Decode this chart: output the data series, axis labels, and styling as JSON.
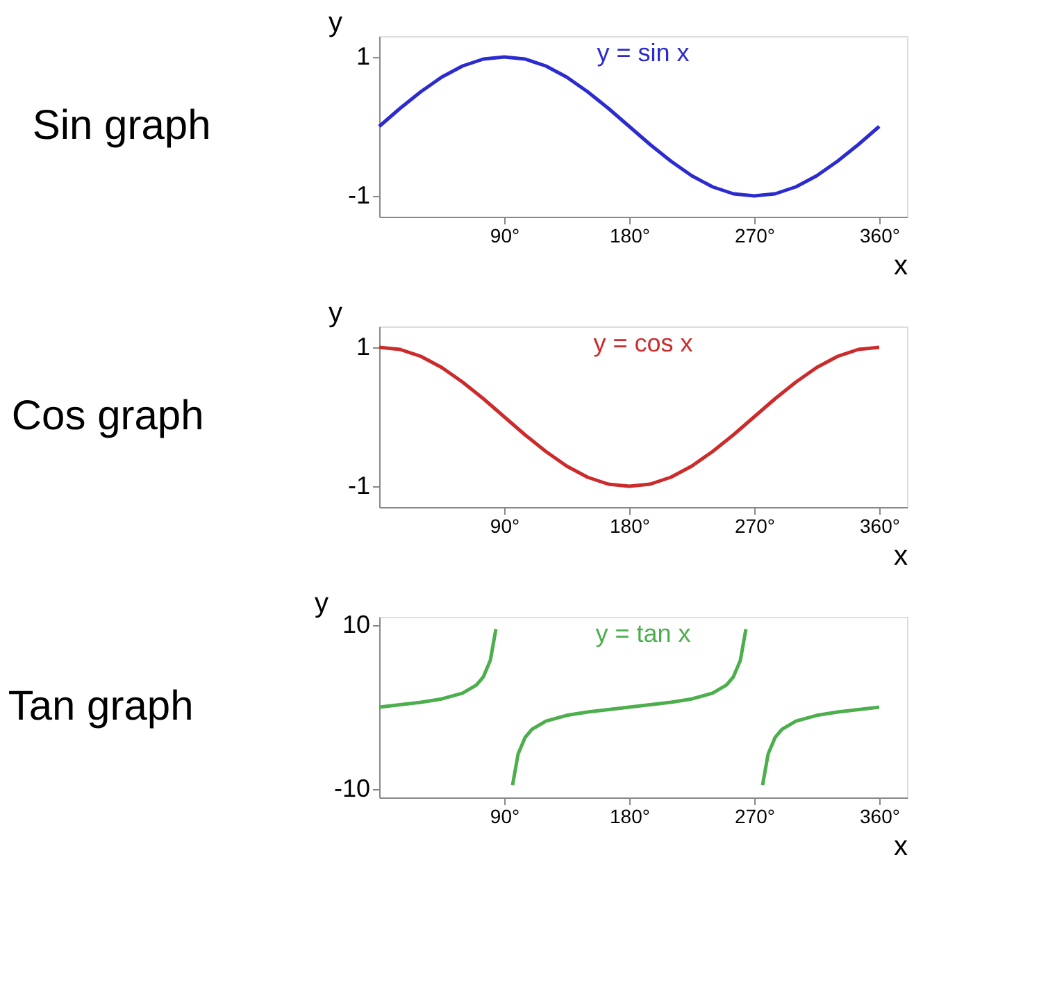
{
  "chart_data": [
    {
      "type": "line",
      "title": "Sin graph",
      "xlabel": "x",
      "ylabel": "y",
      "x": [
        0,
        15,
        30,
        45,
        60,
        75,
        90,
        105,
        120,
        135,
        150,
        165,
        180,
        195,
        210,
        225,
        240,
        255,
        270,
        285,
        300,
        315,
        330,
        345,
        360
      ],
      "series": [
        {
          "name": "y = sin x",
          "color": "#2b2bd0",
          "values": [
            0,
            0.26,
            0.5,
            0.71,
            0.87,
            0.97,
            1,
            0.97,
            0.87,
            0.71,
            0.5,
            0.26,
            0,
            -0.26,
            -0.5,
            -0.71,
            -0.87,
            -0.97,
            -1,
            -0.97,
            -0.87,
            -0.71,
            -0.5,
            -0.26,
            0
          ]
        }
      ],
      "xlim": [
        0,
        380
      ],
      "ylim": [
        -1.3,
        1.3
      ],
      "xticks": [
        {
          "value": 90,
          "label": "90°"
        },
        {
          "value": 180,
          "label": "180°"
        },
        {
          "value": 270,
          "label": "270°"
        },
        {
          "value": 360,
          "label": "360°"
        }
      ],
      "yticks": [
        -1,
        1
      ],
      "grid": false,
      "marker": "none",
      "line_style": "solid"
    },
    {
      "type": "line",
      "title": "Cos graph",
      "xlabel": "x",
      "ylabel": "y",
      "x": [
        0,
        15,
        30,
        45,
        60,
        75,
        90,
        105,
        120,
        135,
        150,
        165,
        180,
        195,
        210,
        225,
        240,
        255,
        270,
        285,
        300,
        315,
        330,
        345,
        360
      ],
      "series": [
        {
          "name": "y = cos x",
          "color": "#cc2b2b",
          "values": [
            1,
            0.97,
            0.87,
            0.71,
            0.5,
            0.26,
            0,
            -0.26,
            -0.5,
            -0.71,
            -0.87,
            -0.97,
            -1,
            -0.97,
            -0.87,
            -0.71,
            -0.5,
            -0.26,
            0,
            0.26,
            0.5,
            0.71,
            0.87,
            0.97,
            1
          ]
        }
      ],
      "xlim": [
        0,
        380
      ],
      "ylim": [
        -1.3,
        1.3
      ],
      "xticks": [
        {
          "value": 90,
          "label": "90°"
        },
        {
          "value": 180,
          "label": "180°"
        },
        {
          "value": 270,
          "label": "270°"
        },
        {
          "value": 360,
          "label": "360°"
        }
      ],
      "yticks": [
        -1,
        1
      ],
      "grid": false,
      "marker": "none",
      "line_style": "solid"
    },
    {
      "type": "line",
      "title": "Tan graph",
      "xlabel": "x",
      "ylabel": "y",
      "x": [
        0,
        15,
        30,
        45,
        60,
        70,
        75,
        80,
        84,
        90,
        96,
        100,
        105,
        110,
        120,
        135,
        150,
        165,
        180,
        195,
        210,
        225,
        240,
        250,
        255,
        260,
        264,
        270,
        276,
        280,
        285,
        290,
        300,
        315,
        330,
        345,
        360
      ],
      "series": [
        {
          "name": "y = tan x",
          "color": "#4cae4c",
          "values": [
            0,
            0.3,
            0.6,
            1,
            1.7,
            2.7,
            3.7,
            5.7,
            9.5,
            null,
            -9.5,
            -5.7,
            -3.7,
            -2.7,
            -1.7,
            -1,
            -0.6,
            -0.3,
            0,
            0.3,
            0.6,
            1,
            1.7,
            2.7,
            3.7,
            5.7,
            9.5,
            null,
            -9.5,
            -5.7,
            -3.7,
            -2.7,
            -1.7,
            -1,
            -0.6,
            -0.3,
            0
          ]
        }
      ],
      "xlim": [
        0,
        380
      ],
      "ylim": [
        -11,
        11
      ],
      "xticks": [
        {
          "value": 90,
          "label": "90°"
        },
        {
          "value": 180,
          "label": "180°"
        },
        {
          "value": 270,
          "label": "270°"
        },
        {
          "value": 360,
          "label": "360°"
        }
      ],
      "yticks": [
        -10,
        10
      ],
      "grid": false,
      "marker": "none",
      "line_style": "solid"
    }
  ]
}
